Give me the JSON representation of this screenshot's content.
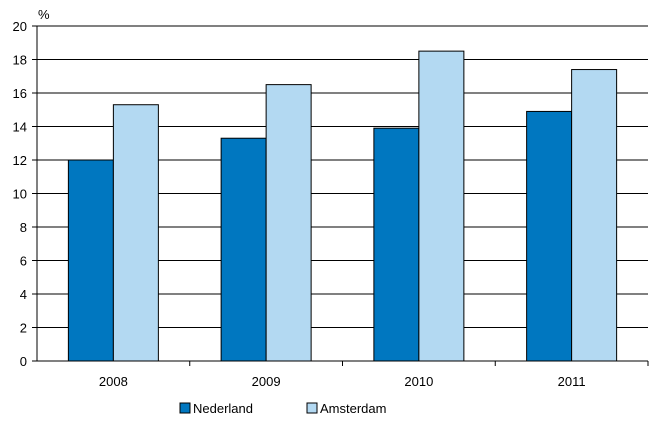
{
  "chart_data": {
    "type": "bar",
    "title": "",
    "xlabel": "",
    "ylabel": "%",
    "ylim": [
      0,
      20
    ],
    "yticks": [
      0,
      2,
      4,
      6,
      8,
      10,
      12,
      14,
      16,
      18,
      20
    ],
    "grid": true,
    "legend_position": "bottom",
    "categories": [
      "2008",
      "2009",
      "2010",
      "2011"
    ],
    "series": [
      {
        "name": "Nederland",
        "color": "#0077c0",
        "values": [
          12.0,
          13.3,
          13.9,
          14.9
        ]
      },
      {
        "name": "Amsterdam",
        "color": "#b3d9f2",
        "values": [
          15.3,
          16.5,
          18.5,
          17.4
        ]
      }
    ]
  }
}
